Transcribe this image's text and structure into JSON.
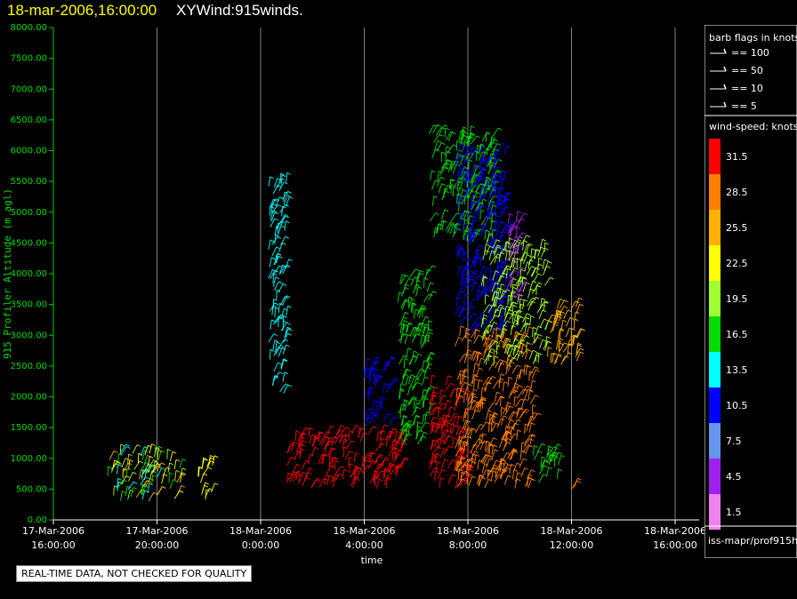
{
  "header": {
    "datetime": "18-mar-2006,16:00:00",
    "product": "XYWind:915winds."
  },
  "footer": {
    "quality_note": "REAL-TIME DATA, NOT CHECKED FOR QUALITY",
    "source_label": "iss-mapr/prof915h"
  },
  "legend": {
    "barb_title": "barb flags in knots",
    "barbs": [
      {
        "label": "== 100"
      },
      {
        "label": "== 50"
      },
      {
        "label": "== 10"
      },
      {
        "label": "== 5"
      }
    ],
    "speed_title": "wind-speed: knots",
    "scale": [
      {
        "label": "31.5",
        "color": "#ff0000"
      },
      {
        "label": "28.5",
        "color": "#ff8000"
      },
      {
        "label": "25.5",
        "color": "#ffb000"
      },
      {
        "label": "22.5",
        "color": "#ffff00"
      },
      {
        "label": "19.5",
        "color": "#a0ff30"
      },
      {
        "label": "16.5",
        "color": "#00dd00"
      },
      {
        "label": "13.5",
        "color": "#00ffff"
      },
      {
        "label": "10.5",
        "color": "#0000ff"
      },
      {
        "label": "7.5",
        "color": "#6495ed"
      },
      {
        "label": "4.5",
        "color": "#a020f0"
      },
      {
        "label": "1.5",
        "color": "#ee82ee"
      }
    ]
  },
  "chart_data": {
    "type": "scatter",
    "title": "18-mar-2006,16:00:00 XYWind:915winds.",
    "xlabel": "time",
    "ylabel": "915 Profiler Altitude (m agl)",
    "ylim": [
      0,
      8000
    ],
    "xlim_hours": [
      0,
      24
    ],
    "y_ticks": [
      "0.00",
      "500.00",
      "1000.00",
      "1500.00",
      "2000.00",
      "2500.00",
      "3000.00",
      "3500.00",
      "4000.00",
      "4500.00",
      "5000.00",
      "5500.00",
      "6000.00",
      "6500.00",
      "7000.00",
      "7500.00",
      "8000.00"
    ],
    "x_ticks": [
      {
        "h": 0,
        "date": "17-Mar-2006",
        "time": "16:00:00"
      },
      {
        "h": 4,
        "date": "17-Mar-2006",
        "time": "20:00:00"
      },
      {
        "h": 8,
        "date": "18-Mar-2006",
        "time": "0:00:00"
      },
      {
        "h": 12,
        "date": "18-Mar-2006",
        "time": "4:00:00"
      },
      {
        "h": 16,
        "date": "18-Mar-2006",
        "time": "8:00:00"
      },
      {
        "h": 20,
        "date": "18-Mar-2006",
        "time": "12:00:00"
      },
      {
        "h": 24,
        "date": "18-Mar-2006",
        "time": "16:00:00"
      }
    ],
    "grid": "vertical",
    "series": [
      {
        "t0": 2.1,
        "t1": 5.0,
        "ymin": 300,
        "ymax": 1100,
        "speed": "mixed-19-22"
      },
      {
        "t0": 5.5,
        "t1": 6.2,
        "ymin": 300,
        "ymax": 900,
        "speed": "22.5"
      },
      {
        "t0": 8.3,
        "t1": 9.0,
        "ymin": 2000,
        "ymax": 5500,
        "speed": "13.5"
      },
      {
        "t0": 9.0,
        "t1": 11.0,
        "ymin": 500,
        "ymax": 1400,
        "speed": "31.5"
      },
      {
        "t0": 11.0,
        "t1": 13.5,
        "ymin": 500,
        "ymax": 1400,
        "speed": "31.5"
      },
      {
        "t0": 12.0,
        "t1": 13.0,
        "ymin": 1500,
        "ymax": 2500,
        "speed": "10.5"
      },
      {
        "t0": 13.3,
        "t1": 14.5,
        "ymin": 1200,
        "ymax": 4000,
        "speed": "16.5"
      },
      {
        "t0": 14.5,
        "t1": 16.0,
        "ymin": 500,
        "ymax": 2200,
        "speed": "31.5"
      },
      {
        "t0": 14.5,
        "t1": 17.0,
        "ymin": 4500,
        "ymax": 6300,
        "speed": "16.5"
      },
      {
        "t0": 15.5,
        "t1": 17.5,
        "ymin": 3000,
        "ymax": 6000,
        "speed": "10.5"
      },
      {
        "t0": 15.5,
        "t1": 18.5,
        "ymin": 500,
        "ymax": 3000,
        "speed": "28.5"
      },
      {
        "t0": 16.5,
        "t1": 19.0,
        "ymin": 2500,
        "ymax": 4500,
        "speed": "19.5"
      },
      {
        "t0": 17.5,
        "t1": 18.0,
        "ymin": 3500,
        "ymax": 5000,
        "speed": "4.5"
      },
      {
        "t0": 19.0,
        "t1": 20.3,
        "ymin": 2500,
        "ymax": 3500,
        "speed": "25.5"
      },
      {
        "t0": 18.5,
        "t1": 19.5,
        "ymin": 500,
        "ymax": 1100,
        "speed": "16.5"
      },
      {
        "t0": 20.0,
        "t1": 20.2,
        "ymin": 500,
        "ymax": 800,
        "speed": "28.5"
      }
    ]
  }
}
